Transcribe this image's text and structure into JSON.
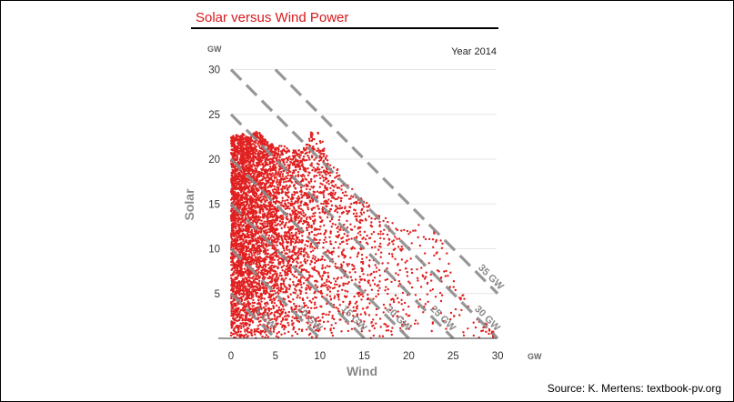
{
  "chart_data": {
    "type": "scatter",
    "title": "Solar versus Wind Power",
    "subtitle": "Year 2014",
    "xlabel": "Wind",
    "ylabel": "Solar",
    "x_unit": "GW",
    "y_unit": "GW",
    "xlim": [
      0,
      30
    ],
    "ylim": [
      0,
      30
    ],
    "x_ticks": [
      "0",
      "5",
      "10",
      "15",
      "20",
      "25",
      "30"
    ],
    "y_ticks": [
      "5",
      "10",
      "15",
      "20",
      "25",
      "30"
    ],
    "grid": "horizontal",
    "point_color": "#e02020",
    "envelope_solar_max_by_wind": [
      [
        0,
        22.5
      ],
      [
        1,
        23
      ],
      [
        2,
        22.5
      ],
      [
        3,
        23.2
      ],
      [
        4,
        22
      ],
      [
        5,
        21.5
      ],
      [
        6,
        21.5
      ],
      [
        7,
        21
      ],
      [
        8,
        21
      ],
      [
        9,
        23
      ],
      [
        10,
        23
      ],
      [
        11,
        20
      ],
      [
        12,
        19
      ],
      [
        13,
        18
      ],
      [
        14,
        16
      ],
      [
        15,
        15.5
      ],
      [
        16,
        14.5
      ],
      [
        17,
        14
      ],
      [
        18,
        13.5
      ],
      [
        19,
        12
      ],
      [
        20,
        13
      ],
      [
        21,
        13
      ],
      [
        22,
        12
      ],
      [
        23,
        12
      ],
      [
        24,
        11
      ],
      [
        25,
        8
      ],
      [
        26,
        5
      ],
      [
        27,
        3.5
      ],
      [
        28,
        2.5
      ],
      [
        29,
        1.5
      ],
      [
        30,
        0
      ]
    ],
    "isolines": [
      {
        "total": 5,
        "label": "5 GW"
      },
      {
        "total": 10,
        "label": "10 GW"
      },
      {
        "total": 15,
        "label": "15 GW"
      },
      {
        "total": 20,
        "label": "20 GW"
      },
      {
        "total": 25,
        "label": "25 GW"
      },
      {
        "total": 30,
        "label": "30 GW"
      },
      {
        "total": 35,
        "label": "35 GW"
      }
    ]
  },
  "source": "Source: K. Mertens: textbook-pv.org"
}
